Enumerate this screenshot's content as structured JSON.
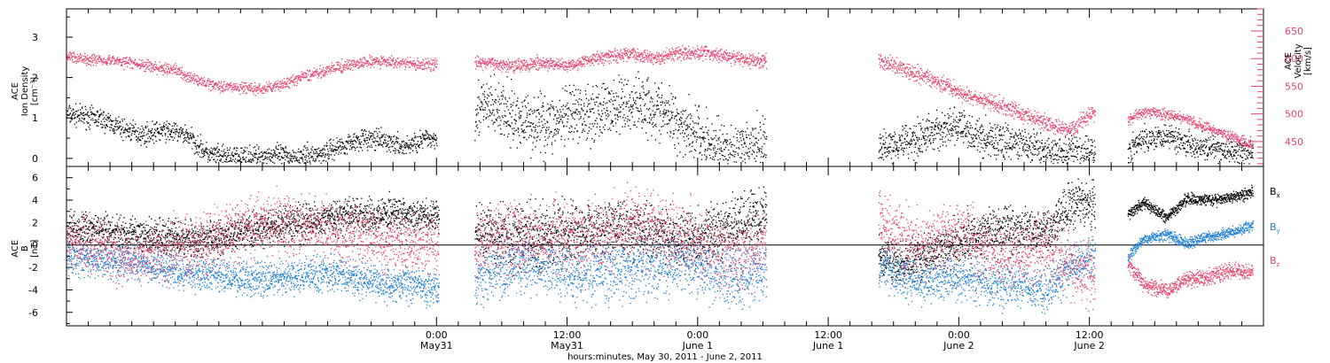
{
  "chart_data": [
    {
      "type": "scatter",
      "panel": "top",
      "ylabel_left": [
        "ACE",
        "Ion Density",
        "[cm⁻³]"
      ],
      "ylabel_right": [
        "ACE",
        "Velocity",
        "[km/s]"
      ],
      "left_axis": {
        "ylim": [
          -0.2,
          3.7
        ],
        "ticks": [
          0,
          1,
          2,
          3
        ]
      },
      "right_axis": {
        "ylim": [
          405,
          690
        ],
        "ticks": [
          450,
          500,
          550,
          600,
          650
        ],
        "color": "#e8436e"
      },
      "xlim_hours": [
        -34,
        76
      ],
      "data_gaps_hours": [
        [
          0.2,
          3.5
        ],
        [
          30.3,
          40.6
        ],
        [
          60.5,
          63.5
        ],
        [
          75,
          76
        ]
      ],
      "series": [
        {
          "name": "",
          "axis": "left",
          "color": "#000000",
          "x": [
            -34,
            -31,
            -29,
            -27,
            -25,
            -23,
            -21,
            -19,
            -17,
            -15,
            -13,
            -11,
            -9,
            -7,
            -5,
            -3,
            -1,
            0
          ],
          "y": [
            1.1,
            1.0,
            0.75,
            0.6,
            0.7,
            0.6,
            0.1,
            0.05,
            0.05,
            0.1,
            0.05,
            0.1,
            0.3,
            0.5,
            0.45,
            0.3,
            0.5,
            0.5
          ],
          "spread": 0.25,
          "density": 2.0
        },
        {
          "name": "",
          "axis": "left",
          "color": "#000000",
          "x": [
            3.5,
            5,
            7,
            9,
            11,
            13,
            15,
            17,
            19,
            21,
            23,
            25,
            27,
            29,
            30.3
          ],
          "y": [
            1.2,
            1.3,
            1.0,
            0.9,
            0.9,
            1.1,
            1.2,
            1.3,
            1.4,
            1.1,
            0.8,
            0.4,
            0.15,
            0.2,
            0.5
          ],
          "spread": 0.7,
          "density": 2.3
        },
        {
          "name": "",
          "axis": "left",
          "color": "#000000",
          "x": [
            40.6,
            42,
            44,
            46,
            48,
            50,
            52,
            54,
            56,
            58,
            60.5
          ],
          "y": [
            0.2,
            0.4,
            0.5,
            0.7,
            0.8,
            0.5,
            0.45,
            0.3,
            0.15,
            0.15,
            0.15
          ],
          "spread": 0.45,
          "density": 2.3
        },
        {
          "name": "",
          "axis": "left",
          "color": "#000000",
          "x": [
            63.5,
            65,
            67,
            69,
            71,
            73,
            75
          ],
          "y": [
            0.2,
            0.5,
            0.6,
            0.4,
            0.25,
            0.15,
            0.15
          ],
          "spread": 0.3,
          "density": 2.2
        },
        {
          "name": "",
          "axis": "right",
          "color": "#e8436e",
          "x": [
            -34,
            -32,
            -30,
            -28,
            -26,
            -24,
            -22,
            -20,
            -18,
            -16,
            -14,
            -12,
            -10,
            -8,
            -6,
            -4,
            -2,
            0
          ],
          "y": [
            605,
            600,
            598,
            593,
            585,
            580,
            560,
            552,
            548,
            545,
            555,
            570,
            580,
            590,
            595,
            595,
            590,
            590
          ],
          "spread": 10,
          "density": 2.0
        },
        {
          "name": "",
          "axis": "right",
          "color": "#e8436e",
          "x": [
            3.5,
            6,
            8,
            10,
            12,
            14,
            16,
            18,
            20,
            22,
            24,
            26,
            28,
            30.3
          ],
          "y": [
            595,
            590,
            590,
            592,
            588,
            600,
            605,
            610,
            600,
            610,
            612,
            608,
            600,
            595
          ],
          "spread": 12,
          "density": 2.3
        },
        {
          "name": "",
          "axis": "right",
          "color": "#e8436e",
          "x": [
            40.6,
            42,
            44,
            46,
            48,
            50,
            52,
            54,
            56,
            58,
            60.5
          ],
          "y": [
            598,
            590,
            575,
            560,
            540,
            525,
            515,
            500,
            485,
            470,
            505
          ],
          "spread": 14,
          "density": 2.3
        },
        {
          "name": "",
          "axis": "right",
          "color": "#e8436e",
          "x": [
            63.5,
            65,
            67,
            69,
            71,
            73,
            75
          ],
          "y": [
            490,
            505,
            500,
            490,
            475,
            460,
            445
          ],
          "spread": 10,
          "density": 2.2
        }
      ]
    },
    {
      "type": "scatter",
      "panel": "bottom",
      "ylabel_left": [
        "ACE",
        "B",
        "[nT]"
      ],
      "left_axis": {
        "ylim": [
          -7.2,
          7.0
        ],
        "ticks": [
          -6,
          -4,
          -2,
          0,
          2,
          4,
          6
        ]
      },
      "zero_line": true,
      "xlim_hours": [
        -34,
        76
      ],
      "data_gaps_hours": [
        [
          0.2,
          3.5
        ],
        [
          30.3,
          40.6
        ],
        [
          60.5,
          63.5
        ],
        [
          75,
          76
        ]
      ],
      "legend": {
        "placement": "right",
        "entries": [
          {
            "base": "B",
            "sub": "x",
            "color": "#000000"
          },
          {
            "base": "B",
            "sub": "y",
            "color": "#1f7fd6"
          },
          {
            "base": "B",
            "sub": "z",
            "color": "#e8436e"
          }
        ]
      },
      "series": [
        {
          "name": "Bx",
          "color": "#000000",
          "segments": [
            {
              "x": [
                -34,
                -28,
                -22,
                -16,
                -10,
                -4,
                0.2
              ],
              "y": [
                1.5,
                1.0,
                0.5,
                1.5,
                2.5,
                2.8,
                2.5
              ],
              "spread": 1.5,
              "density": 3.0
            },
            {
              "x": [
                3.5,
                8,
                13,
                18,
                23,
                28,
                30.3
              ],
              "y": [
                1.0,
                0.8,
                1.5,
                1.5,
                0.5,
                2.0,
                3.0
              ],
              "spread": 2.5,
              "density": 3.0
            },
            {
              "x": [
                40.6,
                44,
                48,
                52,
                56,
                58,
                60.5
              ],
              "y": [
                -1.0,
                -1.5,
                0.5,
                1.5,
                1.0,
                3.5,
                4.0
              ],
              "spread": 2.0,
              "density": 3.0
            },
            {
              "x": [
                63.5,
                65,
                67,
                69,
                71,
                73,
                75
              ],
              "y": [
                2.8,
                3.8,
                2.5,
                4.2,
                4.0,
                4.3,
                4.8
              ],
              "spread": 0.5,
              "density": 3.0
            }
          ]
        },
        {
          "name": "By",
          "color": "#1f7fd6",
          "segments": [
            {
              "x": [
                -34,
                -28,
                -22,
                -16,
                -10,
                -4,
                0.2
              ],
              "y": [
                -1.0,
                -1.5,
                -2.5,
                -3.0,
                -2.5,
                -3.5,
                -3.8
              ],
              "spread": 1.5,
              "density": 3.0
            },
            {
              "x": [
                3.5,
                8,
                13,
                18,
                23,
                28,
                30.3
              ],
              "y": [
                -3.0,
                -1.5,
                -2.5,
                -2.0,
                -1.5,
                -3.0,
                -2.0
              ],
              "spread": 2.5,
              "density": 3.0
            },
            {
              "x": [
                40.6,
                44,
                48,
                52,
                56,
                58,
                60.5
              ],
              "y": [
                -2.0,
                -3.0,
                -3.0,
                -3.5,
                -4.0,
                -2.0,
                -1.0
              ],
              "spread": 1.8,
              "density": 3.0
            },
            {
              "x": [
                63.5,
                65,
                67,
                69,
                71,
                73,
                75
              ],
              "y": [
                -1.0,
                0.5,
                1.0,
                0.2,
                0.8,
                1.2,
                1.8
              ],
              "spread": 0.5,
              "density": 3.0
            }
          ]
        },
        {
          "name": "Bz",
          "color": "#e8436e",
          "segments": [
            {
              "x": [
                -34,
                -28,
                -22,
                -16,
                -10,
                -4,
                0.2
              ],
              "y": [
                1.0,
                -1.0,
                0.0,
                2.0,
                1.5,
                0.5,
                0.0
              ],
              "spread": 2.5,
              "density": 3.0
            },
            {
              "x": [
                3.5,
                8,
                13,
                18,
                23,
                28,
                30.3
              ],
              "y": [
                0.0,
                1.0,
                0.5,
                2.0,
                0.5,
                -1.0,
                0.0
              ],
              "spread": 3.0,
              "density": 3.0
            },
            {
              "x": [
                40.6,
                44,
                48,
                52,
                56,
                58,
                60.5
              ],
              "y": [
                2.0,
                0.0,
                1.0,
                -1.0,
                0.0,
                -1.5,
                -2.5
              ],
              "spread": 2.8,
              "density": 3.0
            },
            {
              "x": [
                63.5,
                65,
                67,
                69,
                71,
                73,
                75
              ],
              "y": [
                -1.5,
                -3.5,
                -4.0,
                -3.0,
                -2.8,
                -2.2,
                -2.5
              ],
              "spread": 0.7,
              "density": 3.0
            }
          ]
        }
      ]
    }
  ],
  "x_axis": {
    "ticks": [
      {
        "hours": 0,
        "top": "0:00",
        "bottom": "May31"
      },
      {
        "hours": 12,
        "top": "12:00",
        "bottom": "May31"
      },
      {
        "hours": 24,
        "top": "0:00",
        "bottom": "June 1"
      },
      {
        "hours": 36,
        "top": "12:00",
        "bottom": "June 1"
      },
      {
        "hours": 48,
        "top": "0:00",
        "bottom": "June 2"
      },
      {
        "hours": 60,
        "top": "12:00",
        "bottom": "June 2"
      }
    ],
    "minor_step_hours": 2,
    "xlabel": "hours:minutes, May 30, 2011 - June  2, 2011"
  }
}
